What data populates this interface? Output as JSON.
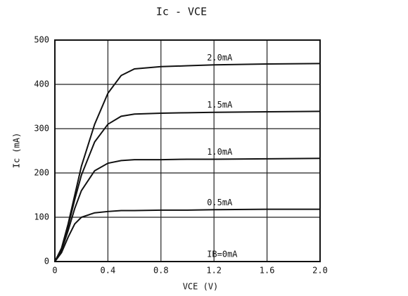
{
  "chart_data": {
    "type": "line",
    "title": "Ic - VCE",
    "x_label": "VCE (V)",
    "y_label": "Ic (mA)",
    "x": [
      0,
      0.05,
      0.1,
      0.15,
      0.2,
      0.3,
      0.4,
      0.5,
      0.6,
      0.8,
      1.0,
      1.2,
      1.6,
      2.0
    ],
    "series": [
      {
        "name": "IB=0mA",
        "color": "#111111",
        "values": [
          0,
          0,
          0,
          0,
          0,
          0,
          0,
          0,
          0,
          0,
          0,
          0,
          0,
          0
        ]
      },
      {
        "name": "0.5mA",
        "color": "#111111",
        "values": [
          0,
          20,
          55,
          85,
          100,
          110,
          113,
          115,
          115,
          116,
          116,
          117,
          118,
          118
        ]
      },
      {
        "name": "1.0mA",
        "color": "#111111",
        "values": [
          0,
          25,
          70,
          120,
          160,
          205,
          222,
          228,
          230,
          230,
          231,
          231,
          232,
          233
        ]
      },
      {
        "name": "1.5mA",
        "color": "#111111",
        "values": [
          0,
          28,
          80,
          140,
          195,
          270,
          310,
          328,
          333,
          335,
          336,
          337,
          338,
          339
        ]
      },
      {
        "name": "2.0mA",
        "color": "#111111",
        "values": [
          0,
          30,
          85,
          150,
          215,
          310,
          380,
          420,
          435,
          440,
          442,
          444,
          446,
          447
        ]
      }
    ],
    "xlim": [
      0,
      2
    ],
    "xticks": [
      0,
      0.4,
      0.8,
      1.2,
      1.6,
      {
        "value": 2,
        "label": "2.0"
      }
    ],
    "ylim": [
      0,
      500
    ],
    "yticks": [
      0,
      100,
      200,
      300,
      400,
      500
    ],
    "grid": true
  }
}
